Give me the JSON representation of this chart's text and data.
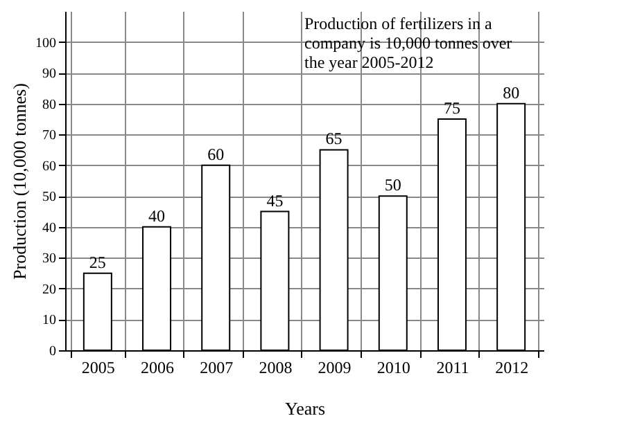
{
  "chart_data": {
    "type": "bar",
    "categories": [
      "2005",
      "2006",
      "2007",
      "2008",
      "2009",
      "2010",
      "2011",
      "2012"
    ],
    "values": [
      25,
      40,
      60,
      45,
      65,
      50,
      75,
      80
    ],
    "color": "#ffffff",
    "xlabel": "Years",
    "ylabel": "Production (10,000 tonnes)",
    "annotations": [
      "Production of fertilizers in a company is 10,000 tonnes over the year 2005-2012"
    ],
    "ylim": [
      0,
      110
    ],
    "yticks": [
      0,
      10,
      20,
      30,
      40,
      50,
      60,
      70,
      80,
      90,
      100
    ],
    "grid": true,
    "data_labels": true
  }
}
